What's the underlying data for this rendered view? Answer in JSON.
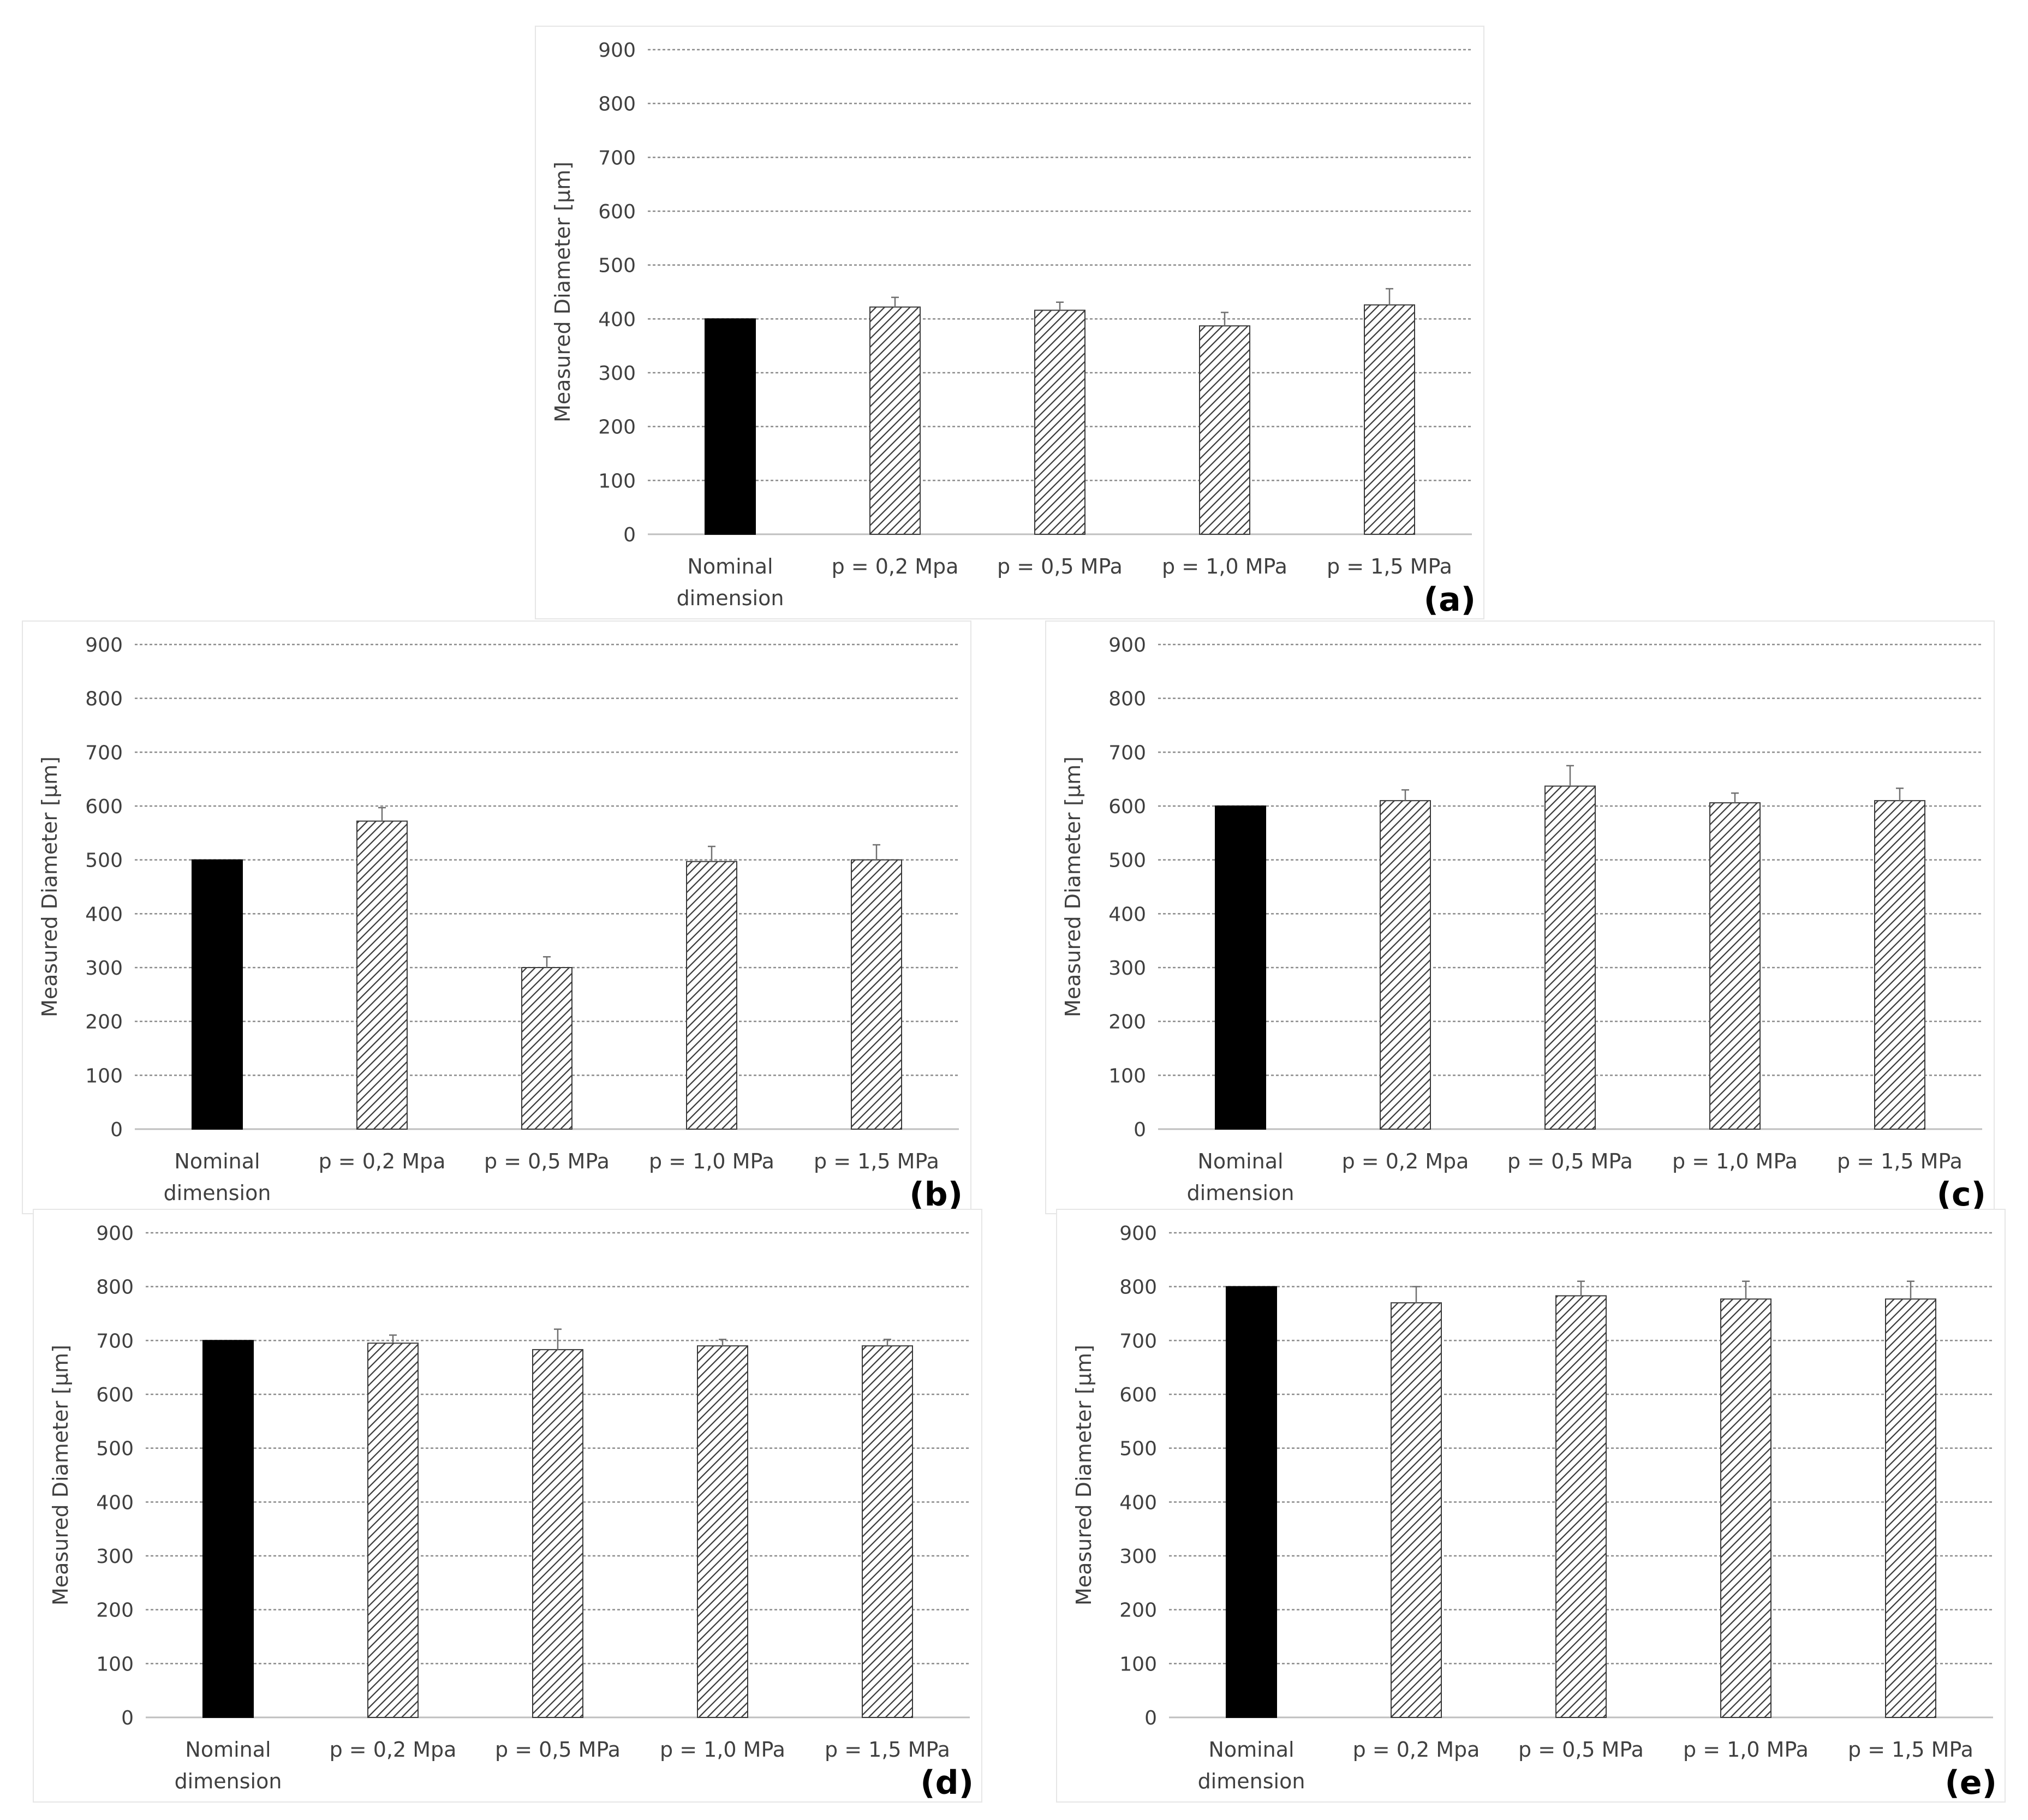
{
  "chart_data": [
    {
      "panel": "(a)",
      "type": "bar",
      "ylabel": "Measured Diameter [µm]",
      "categories": [
        "Nominal\ndimension",
        "p = 0,2 Mpa",
        "p = 0,5 MPa",
        "p = 1,0 MPa",
        "p = 1,5 MPa"
      ],
      "values": [
        400,
        422,
        416,
        387,
        426
      ],
      "errors": [
        0,
        18,
        15,
        25,
        30
      ],
      "ylim": [
        0,
        900
      ],
      "yticks": [
        0,
        100,
        200,
        300,
        400,
        500,
        600,
        700,
        800,
        900
      ],
      "grid": true
    },
    {
      "panel": "(b)",
      "type": "bar",
      "ylabel": "Measured Diameter [µm]",
      "categories": [
        "Nominal\ndimension",
        "p = 0,2 Mpa",
        "p = 0,5 MPa",
        "p = 1,0 MPa",
        "p = 1,5 MPa"
      ],
      "values": [
        500,
        572,
        300,
        497,
        500
      ],
      "errors": [
        0,
        25,
        20,
        28,
        28
      ],
      "ylim": [
        0,
        900
      ],
      "yticks": [
        0,
        100,
        200,
        300,
        400,
        500,
        600,
        700,
        800,
        900
      ],
      "grid": true
    },
    {
      "panel": "(c)",
      "type": "bar",
      "ylabel": "Measured Diameter [µm]",
      "categories": [
        "Nominal\ndimension",
        "p = 0,2 Mpa",
        "p = 0,5 MPa",
        "p = 1,0 MPa",
        "p = 1,5 MPa"
      ],
      "values": [
        600,
        610,
        637,
        606,
        610
      ],
      "errors": [
        0,
        20,
        38,
        18,
        23
      ],
      "ylim": [
        0,
        900
      ],
      "yticks": [
        0,
        100,
        200,
        300,
        400,
        500,
        600,
        700,
        800,
        900
      ],
      "grid": true
    },
    {
      "panel": "(d)",
      "type": "bar",
      "ylabel": "Measured Diameter [µm]",
      "categories": [
        "Nominal\ndimension",
        "p = 0,2 Mpa",
        "p = 0,5 MPa",
        "p = 1,0 MPa",
        "p = 1,5 MPa"
      ],
      "values": [
        700,
        695,
        683,
        690,
        690
      ],
      "errors": [
        0,
        15,
        38,
        12,
        12
      ],
      "ylim": [
        0,
        900
      ],
      "yticks": [
        0,
        100,
        200,
        300,
        400,
        500,
        600,
        700,
        800,
        900
      ],
      "grid": true
    },
    {
      "panel": "(e)",
      "type": "bar",
      "ylabel": "Measured Diameter [µm]",
      "categories": [
        "Nominal\ndimension",
        "p = 0,2 Mpa",
        "p = 0,5 MPa",
        "p = 1,0 MPa",
        "p = 1,5 MPa"
      ],
      "values": [
        800,
        770,
        783,
        777,
        777
      ],
      "errors": [
        0,
        30,
        27,
        33,
        33
      ],
      "ylim": [
        0,
        900
      ],
      "yticks": [
        0,
        100,
        200,
        300,
        400,
        500,
        600,
        700,
        800,
        900
      ],
      "grid": true
    }
  ],
  "colors": {
    "nominal": "#000000",
    "hatch": "#3a3a3a",
    "grid": "#8c8c8c",
    "axis": "#bfbfbf",
    "text": "#404040"
  }
}
